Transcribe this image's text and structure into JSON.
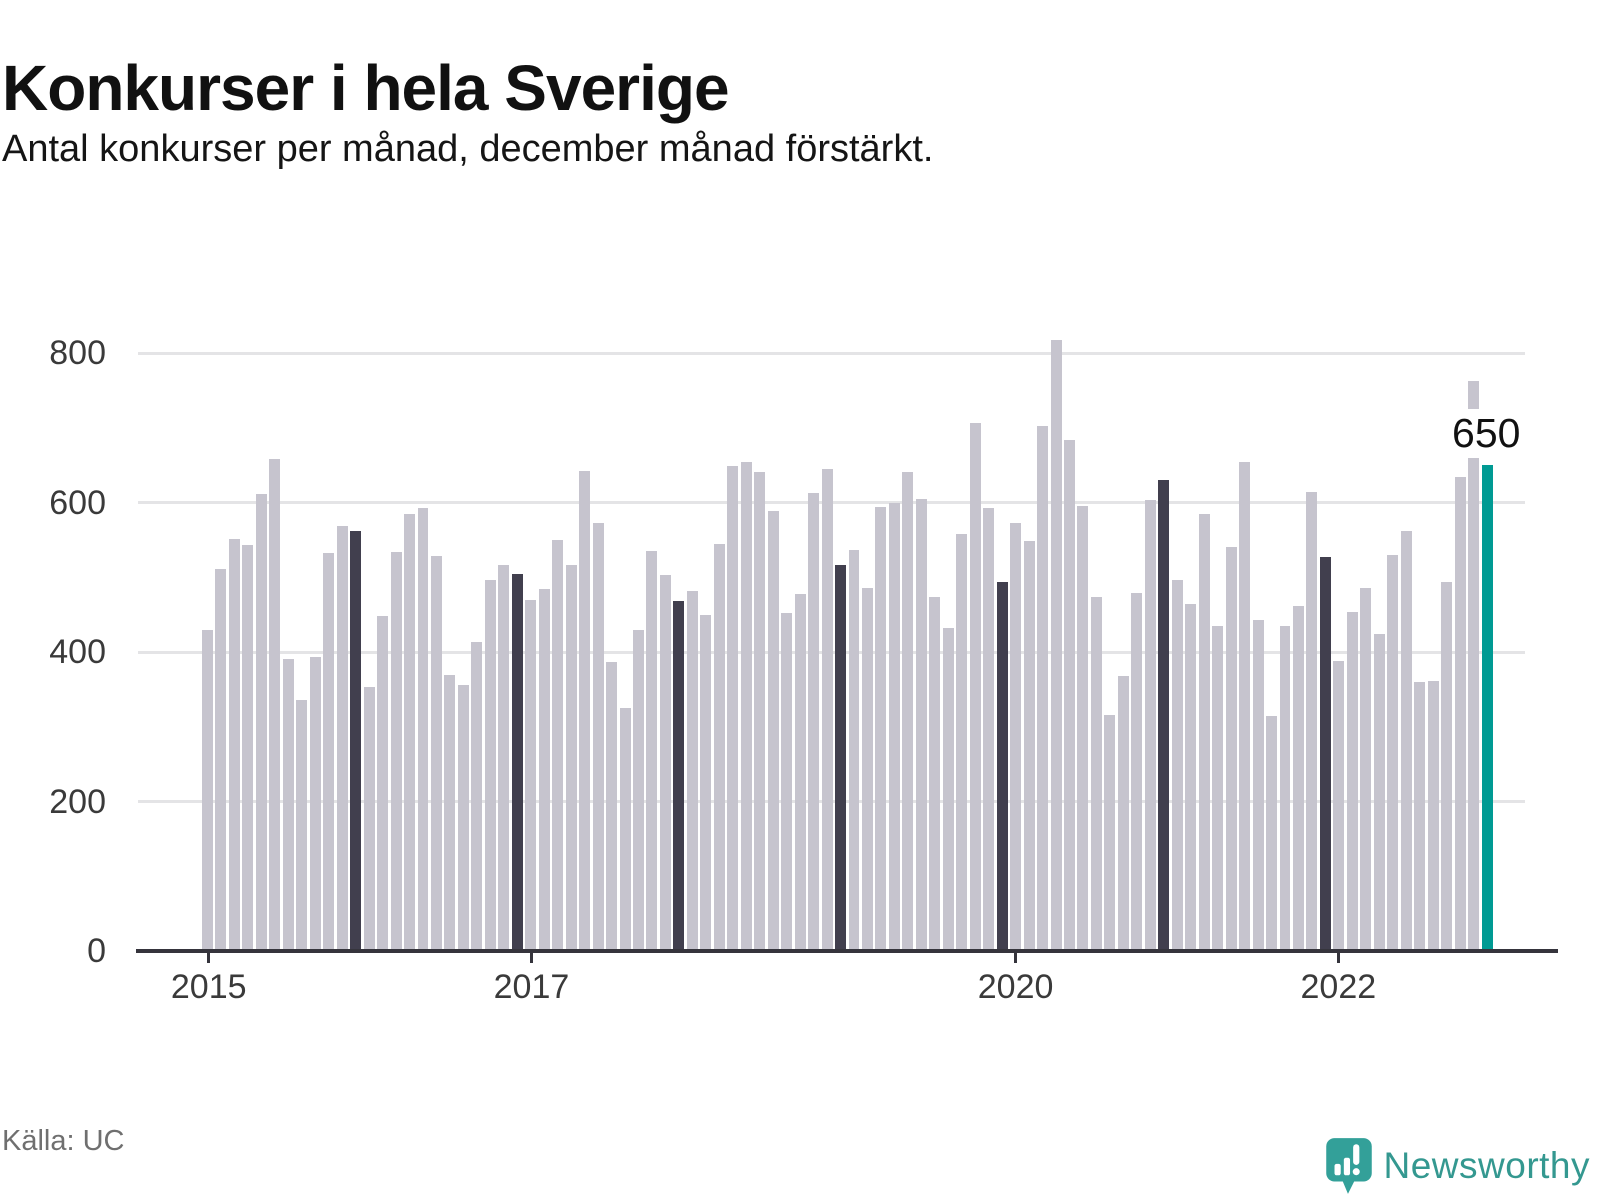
{
  "header": {
    "title": "Konkurser i hela Sverige",
    "subtitle": "Antal konkurser per månad, december månad förstärkt."
  },
  "footer": {
    "source": "Källa: UC",
    "brand": "Newsworthy"
  },
  "chart_data": {
    "type": "bar",
    "title": "Konkurser i hela Sverige",
    "subtitle": "Antal konkurser per månad, december månad förstärkt.",
    "unit": "antal konkurser per månad",
    "start": "2015-01",
    "end": "2022-12",
    "ylim": [
      0,
      830
    ],
    "y_ticks": [
      0,
      200,
      400,
      600,
      800
    ],
    "grid": "horizontal",
    "x_tick_years": [
      {
        "year": "2015",
        "month_index": 0
      },
      {
        "year": "2017",
        "month_index": 24
      },
      {
        "year": "2020",
        "month_index": 60
      },
      {
        "year": "2022",
        "month_index": 84
      }
    ],
    "december_emphasized": true,
    "series_by_year": [
      {
        "year": 2015,
        "values": [
          430,
          511,
          551,
          543,
          611,
          658,
          390,
          336,
          394,
          532,
          568,
          562
        ]
      },
      {
        "year": 2016,
        "values": [
          353,
          448,
          534,
          584,
          592,
          529,
          369,
          356,
          413,
          496,
          516,
          505
        ]
      },
      {
        "year": 2017,
        "values": [
          469,
          484,
          550,
          516,
          642,
          572,
          386,
          325,
          430,
          535,
          503,
          468
        ]
      },
      {
        "year": 2018,
        "values": [
          482,
          450,
          544,
          649,
          654,
          641,
          589,
          452,
          477,
          613,
          645,
          516
        ]
      },
      {
        "year": 2019,
        "values": [
          536,
          485,
          594,
          600,
          641,
          605,
          474,
          432,
          558,
          706,
          592,
          494
        ]
      },
      {
        "year": 2020,
        "values": [
          572,
          549,
          702,
          818,
          683,
          596,
          474,
          316,
          368,
          479,
          604,
          630
        ]
      },
      {
        "year": 2021,
        "values": [
          497,
          464,
          585,
          435,
          540,
          654,
          443,
          315,
          435,
          461,
          614,
          527
        ]
      },
      {
        "year": 2022,
        "values": [
          388,
          454,
          485,
          424,
          530,
          562,
          360,
          361,
          493,
          634,
          763,
          650
        ]
      }
    ],
    "highlight": {
      "month": "2022-12",
      "value": 650,
      "label": "650"
    },
    "colors": {
      "bar": "#c6c4ce",
      "december_bar": "#413f4e",
      "highlight_bar": "#009a93",
      "gridline": "#e4e4e6",
      "axis": "#35343c",
      "brand_teal": "#349890"
    }
  }
}
